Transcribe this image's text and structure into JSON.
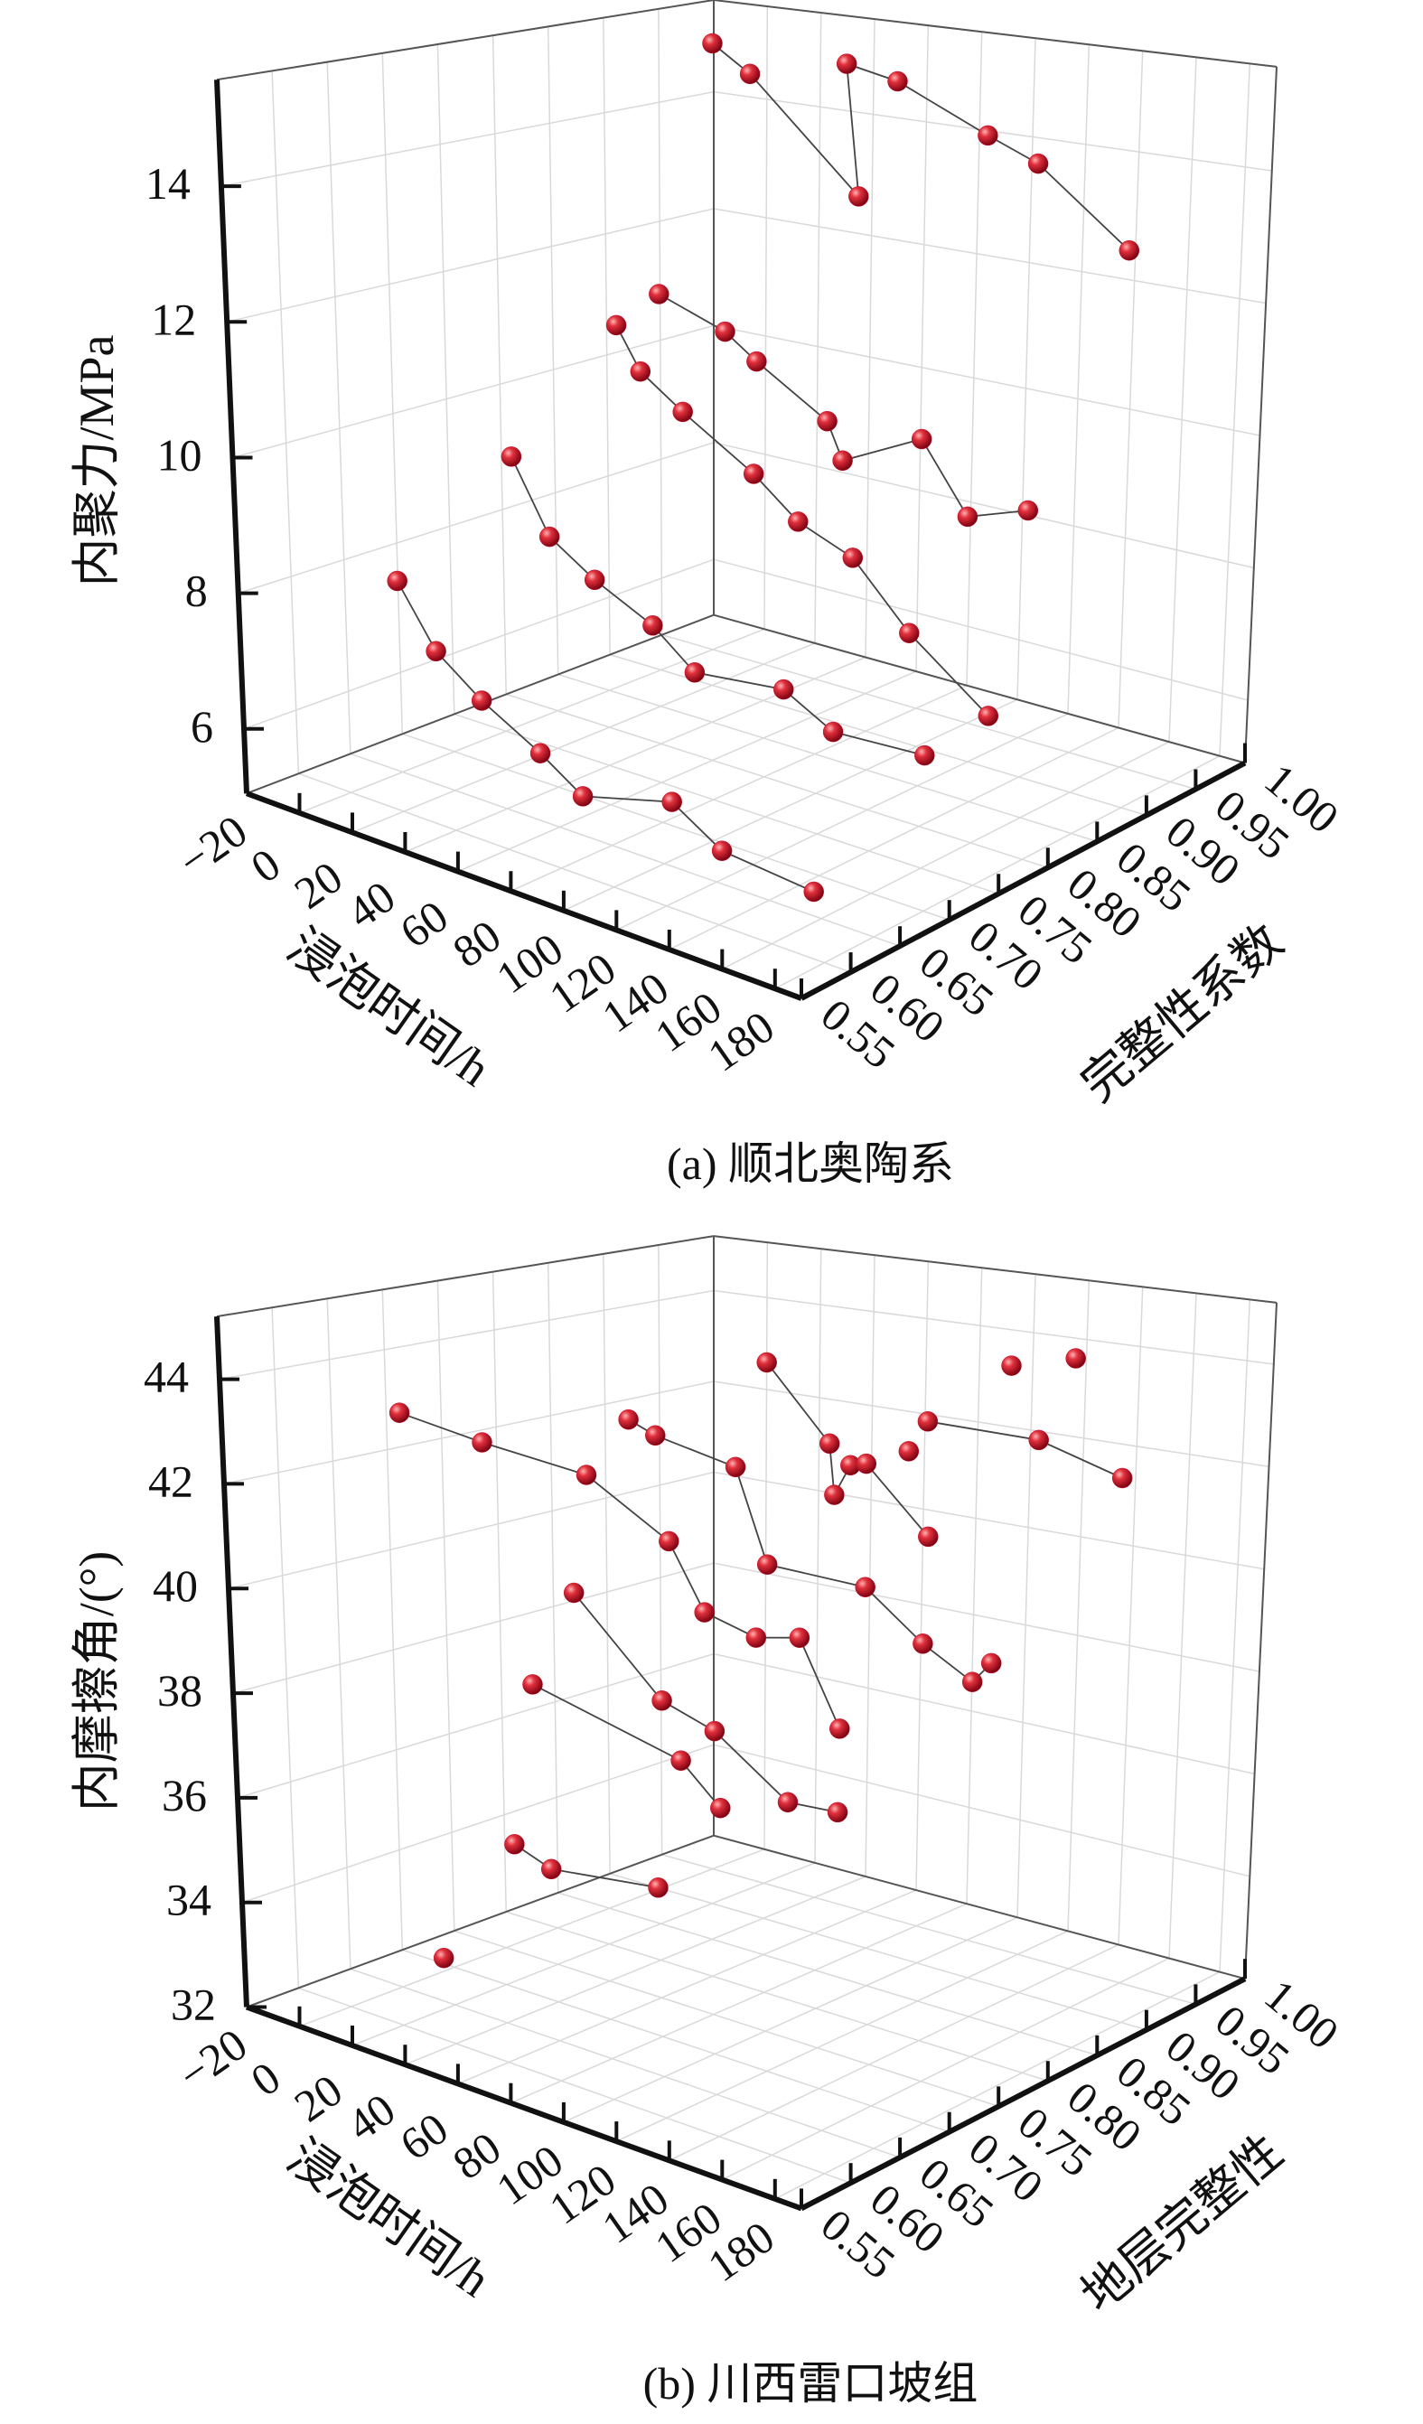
{
  "chart_data": [
    {
      "type": "scatter",
      "projection": "3d",
      "title": "(a) 顺北奥陶系",
      "xlabel": "浸泡时间/h",
      "ylabel": "完整性系数",
      "zlabel": "内聚力/MPa",
      "xlim": [
        -20,
        190
      ],
      "ylim": [
        0.55,
        1.0
      ],
      "zlim": [
        5.05,
        15.57
      ],
      "grid": true,
      "xticks": [
        -20,
        0,
        20,
        40,
        60,
        80,
        100,
        120,
        140,
        160,
        180
      ],
      "xtick_labels": [
        "−20",
        "0",
        "20",
        "40",
        "60",
        "80",
        "100",
        "120",
        "140",
        "160",
        "180"
      ],
      "yticks": [
        0.55,
        0.6,
        0.65,
        0.7,
        0.75,
        0.8,
        0.85,
        0.9,
        0.95,
        1.0
      ],
      "ytick_labels": [
        "0.55",
        "0.60",
        "0.65",
        "0.70",
        "0.75",
        "0.80",
        "0.85",
        "0.90",
        "0.95",
        "1.00"
      ],
      "zticks": [
        6,
        8,
        10,
        12,
        14
      ],
      "ztick_labels": [
        "6",
        "8",
        "10",
        "12",
        "14"
      ],
      "marker_color": "#c8102e",
      "series": [
        {
          "connected": true,
          "points": [
            [
              0,
              0.65,
              7.92
            ],
            [
              14,
              0.65,
              7.04
            ],
            [
              31,
              0.65,
              6.52
            ],
            [
              53,
              0.65,
              6.03
            ],
            [
              69,
              0.65,
              5.61
            ],
            [
              103,
              0.65,
              5.96
            ],
            [
              122,
              0.65,
              5.51
            ],
            [
              157,
              0.65,
              5.38
            ]
          ]
        },
        {
          "connected": true,
          "points": [
            [
              0,
              0.76,
              9.26
            ],
            [
              14,
              0.76,
              8.17
            ],
            [
              31,
              0.76,
              7.7
            ],
            [
              53,
              0.76,
              7.26
            ],
            [
              69,
              0.76,
              6.74
            ],
            [
              103,
              0.76,
              6.88
            ],
            [
              122,
              0.76,
              6.48
            ],
            [
              157,
              0.76,
              6.54
            ]
          ]
        },
        {
          "connected": true,
          "points": [
            [
              0,
              0.86,
              10.86
            ],
            [
              9,
              0.86,
              10.2
            ],
            [
              25,
              0.86,
              9.71
            ],
            [
              52,
              0.86,
              9.0
            ],
            [
              69,
              0.86,
              8.43
            ],
            [
              90,
              0.86,
              8.09
            ],
            [
              112,
              0.86,
              7.18
            ],
            [
              143,
              0.86,
              6.28
            ]
          ]
        },
        {
          "connected": true,
          "points": [
            [
              0,
              0.9,
              11.18
            ],
            [
              25,
              0.9,
              10.79
            ],
            [
              37,
              0.9,
              10.42
            ],
            [
              64,
              0.9,
              9.72
            ],
            [
              70,
              0.9,
              9.16
            ],
            [
              100,
              0.9,
              9.77
            ],
            [
              118,
              0.9,
              8.75
            ],
            [
              141,
              0.9,
              9.06
            ]
          ]
        },
        {
          "connected": true,
          "points": [
            [
              0,
              0.95,
              15.11
            ],
            [
              14,
              0.95,
              14.69
            ],
            [
              55,
              0.95,
              12.97
            ],
            [
              50,
              0.95,
              15.07
            ],
            [
              69,
              0.95,
              14.9
            ],
            [
              103,
              0.95,
              14.25
            ],
            [
              122,
              0.95,
              13.93
            ],
            [
              157,
              0.95,
              12.83
            ]
          ]
        }
      ]
    },
    {
      "type": "scatter",
      "projection": "3d",
      "title": "(b) 川西雷口坡组",
      "xlabel": "浸泡时间/h",
      "ylabel": "地层完整性",
      "zlabel": "内摩擦角/(°)",
      "xlim": [
        -20,
        190
      ],
      "ylim": [
        0.55,
        1.0
      ],
      "zlim": [
        32,
        45.2
      ],
      "grid": true,
      "xticks": [
        -20,
        0,
        20,
        40,
        60,
        80,
        100,
        120,
        140,
        160,
        180
      ],
      "xtick_labels": [
        "−20",
        "0",
        "20",
        "40",
        "60",
        "80",
        "100",
        "120",
        "140",
        "160",
        "180"
      ],
      "yticks": [
        0.55,
        0.6,
        0.65,
        0.7,
        0.75,
        0.8,
        0.85,
        0.9,
        0.95,
        1.0
      ],
      "ytick_labels": [
        "0.55",
        "0.60",
        "0.65",
        "0.70",
        "0.75",
        "0.80",
        "0.85",
        "0.90",
        "0.95",
        "1.00"
      ],
      "zticks": [
        32,
        34,
        36,
        38,
        40,
        42,
        44
      ],
      "ztick_labels": [
        "32",
        "34",
        "36",
        "38",
        "40",
        "42",
        "44"
      ],
      "marker_color": "#c8102e",
      "series": [
        {
          "connected": true,
          "points": [
            [
              1,
              0.66,
              43.14
            ],
            [
              31,
              0.66,
              42.89
            ],
            [
              69,
              0.66,
              42.68
            ],
            [
              99,
              0.66,
              41.77
            ],
            [
              112,
              0.66,
              40.61
            ],
            [
              131,
              0.66,
              40.37
            ],
            [
              147,
              0.66,
              40.55
            ],
            [
              162,
              0.66,
              39.1
            ]
          ]
        },
        {
          "connected": true,
          "points": [
            [
              1,
              0.87,
              42.03
            ],
            [
              11,
              0.87,
              41.8
            ],
            [
              41,
              0.87,
              41.45
            ],
            [
              53,
              0.87,
              39.6
            ],
            [
              90,
              0.87,
              39.55
            ],
            [
              112,
              0.87,
              38.68
            ],
            [
              131,
              0.87,
              38.15
            ],
            [
              138,
              0.87,
              38.59
            ]
          ]
        },
        {
          "connected": true,
          "points": [
            [
              0,
              1.0,
              42.59
            ],
            [
              24,
              1.0,
              41.05
            ],
            [
              26,
              1.0,
              39.97
            ],
            [
              32,
              1.0,
              40.66
            ],
            [
              38,
              1.0,
              40.75
            ],
            [
              62,
              1.0,
              39.44
            ]
          ]
        },
        {
          "connected": true,
          "points": [
            [
              61,
              1.0,
              41.85
            ],
            [
              103,
              1.0,
              41.82
            ],
            [
              135,
              1.0,
              41.32
            ]
          ]
        },
        {
          "connected": false,
          "points": [
            [
              54,
              1.0,
              41.16
            ],
            [
              92,
              1.0,
              43.26
            ],
            [
              116,
              1.0,
              43.59
            ]
          ]
        },
        {
          "connected": true,
          "points": [
            [
              0,
              0.82,
              38.71
            ],
            [
              33,
              0.82,
              36.94
            ],
            [
              53,
              0.82,
              36.59
            ],
            [
              81,
              0.82,
              35.56
            ],
            [
              100,
              0.82,
              35.62
            ]
          ]
        },
        {
          "connected": true,
          "points": [
            [
              0,
              0.78,
              37.09
            ],
            [
              56,
              0.78,
              36.33
            ],
            [
              71,
              0.78,
              35.61
            ]
          ]
        },
        {
          "connected": true,
          "points": [
            [
              0,
              0.76,
              34.0
            ],
            [
              14,
              0.76,
              33.72
            ],
            [
              55,
              0.76,
              33.98
            ]
          ]
        },
        {
          "connected": false,
          "points": [
            [
              0,
              0.69,
              32.26
            ]
          ]
        }
      ]
    }
  ]
}
